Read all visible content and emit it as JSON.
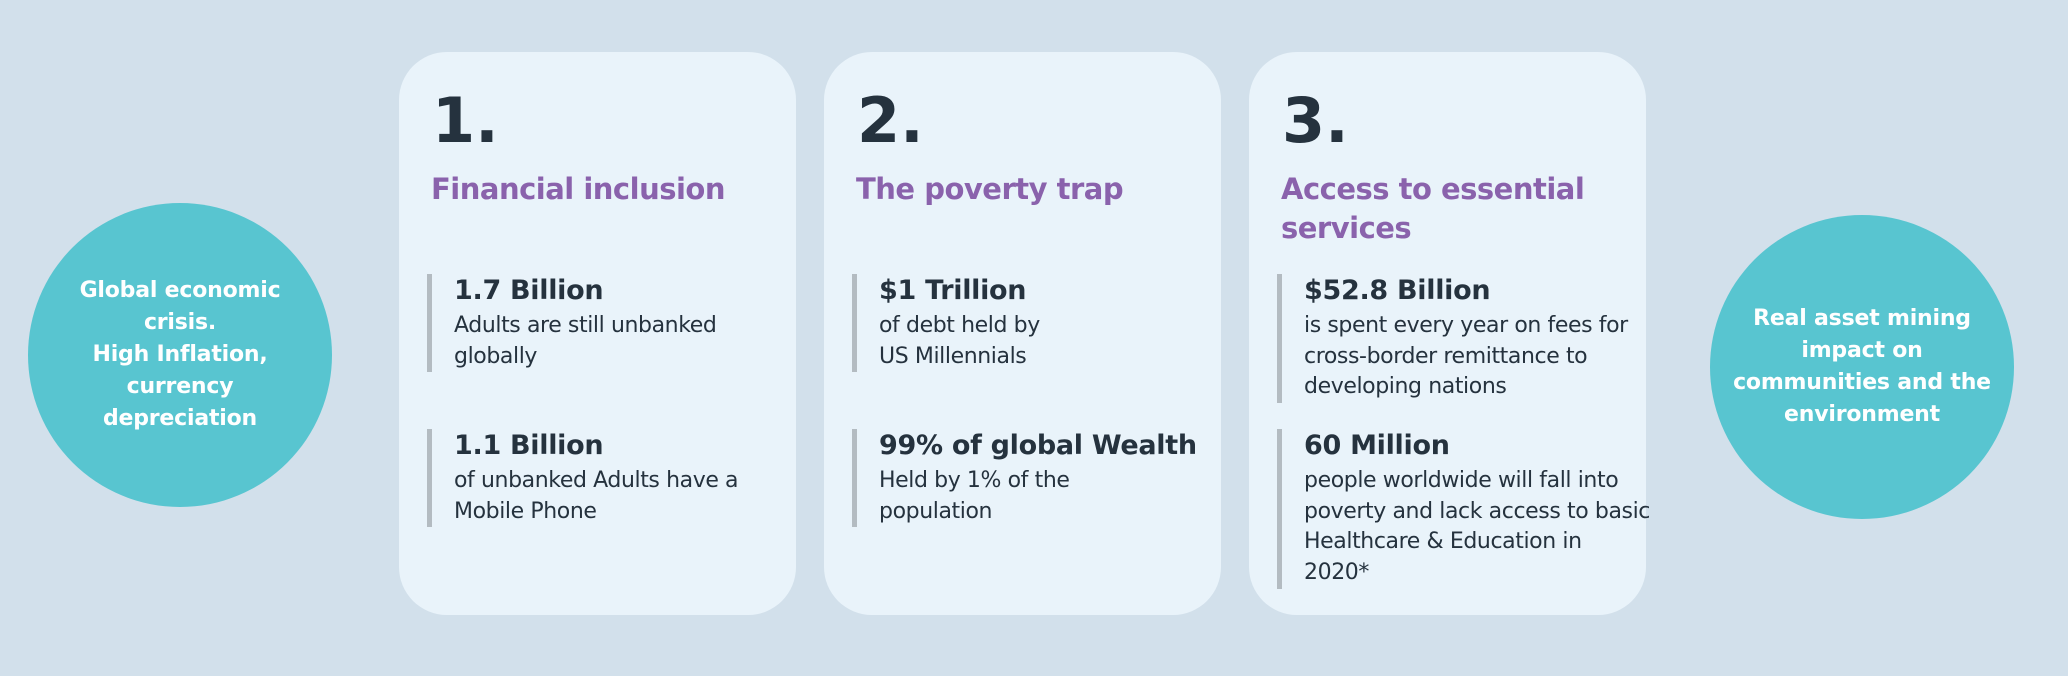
{
  "colors": {
    "page_bg": "#d2e0eb",
    "card_bg": "#e9f3fa",
    "circle_teal": "#58c5d0",
    "heading_purple": "#8a62ac",
    "text_dark": "#25323e",
    "stat_bar_gray": "#b3bbc1",
    "circle_text": "#ffffff"
  },
  "left_circle": {
    "text": "Global economic\ncrisis.\nHigh Inflation,\ncurrency\ndepreciation"
  },
  "right_circle": {
    "text": "Real asset  mining\nimpact on\ncommunities and the\nenvironment"
  },
  "cards": [
    {
      "number": "1.",
      "title": "Financial inclusion",
      "stats": [
        {
          "value": "1.7 Billion",
          "desc": "Adults are still unbanked\nglobally"
        },
        {
          "value": "1.1 Billion",
          "desc": "of unbanked Adults have a\nMobile Phone"
        }
      ]
    },
    {
      "number": "2.",
      "title": "The poverty trap",
      "stats": [
        {
          "value": "$1 Trillion",
          "desc": "of debt held by\nUS Millennials"
        },
        {
          "value": "99% of global Wealth",
          "desc": "Held by 1% of the\npopulation"
        }
      ]
    },
    {
      "number": "3.",
      "title": "Access to essential\nservices",
      "stats": [
        {
          "value": "$52.8 Billion",
          "desc": "is spent every year on fees for\ncross-border remittance to\ndeveloping nations"
        },
        {
          "value": "60 Million",
          "desc": "people worldwide will fall into\npoverty and lack access to basic\nHealthcare & Education in 2020*"
        }
      ]
    }
  ]
}
